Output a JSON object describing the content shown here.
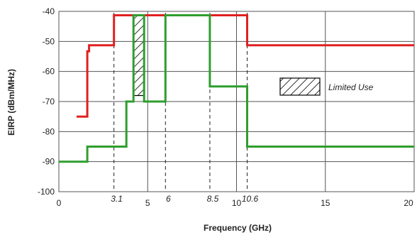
{
  "chart_data": {
    "type": "line",
    "title": "",
    "xlabel": "Frequency (GHz)",
    "ylabel": "EIRP (dBm/MHz)",
    "xlim": [
      0,
      20
    ],
    "ylim": [
      -100,
      -40
    ],
    "x_ticks": [
      {
        "value": 0,
        "label": "0"
      },
      {
        "value": 5,
        "label": "5"
      },
      {
        "value": 10,
        "label": "10"
      },
      {
        "value": 15,
        "label": "15"
      },
      {
        "value": 20,
        "label": "20"
      }
    ],
    "y_ticks": [
      {
        "value": -40,
        "label": "-40"
      },
      {
        "value": -50,
        "label": "-50"
      },
      {
        "value": -60,
        "label": "-60"
      },
      {
        "value": -70,
        "label": "-70"
      },
      {
        "value": -80,
        "label": "-80"
      },
      {
        "value": -90,
        "label": "-90"
      },
      {
        "value": -100,
        "label": "-100"
      }
    ],
    "marker_ticks": [
      {
        "value": 3.1,
        "label": "3.1"
      },
      {
        "value": 6,
        "label": "6"
      },
      {
        "value": 8.5,
        "label": "8.5"
      },
      {
        "value": 10.6,
        "label": "10.6"
      }
    ],
    "grid": true,
    "series": [
      {
        "color": "#e02020",
        "x": [
          1.0,
          1.6,
          1.6,
          1.7,
          1.7,
          2.0,
          2.0,
          3.1,
          3.1,
          10.6,
          10.6,
          20.0
        ],
        "y": [
          -75,
          -75,
          -53.3,
          -53.3,
          -51.3,
          -51.3,
          -51.3,
          -51.3,
          -41.3,
          -41.3,
          -51.3,
          -51.3
        ]
      },
      {
        "color": "#2e9e2e",
        "x": [
          0.0,
          1.6,
          1.6,
          3.8,
          3.8,
          4.2,
          4.2,
          4.8,
          4.8,
          6.0,
          6.0,
          8.5,
          8.5,
          10.6,
          10.6,
          20.0
        ],
        "y": [
          -90,
          -90,
          -85,
          -85,
          -70,
          -70,
          -41.3,
          -41.3,
          -70,
          -70,
          -41.3,
          -41.3,
          -65,
          -65,
          -85,
          -85
        ]
      }
    ],
    "hatched_region": {
      "x": [
        4.2,
        4.8
      ],
      "y": [
        -68,
        -41.3
      ]
    },
    "legend": {
      "label": "Limited Use",
      "position": "center-right"
    }
  }
}
